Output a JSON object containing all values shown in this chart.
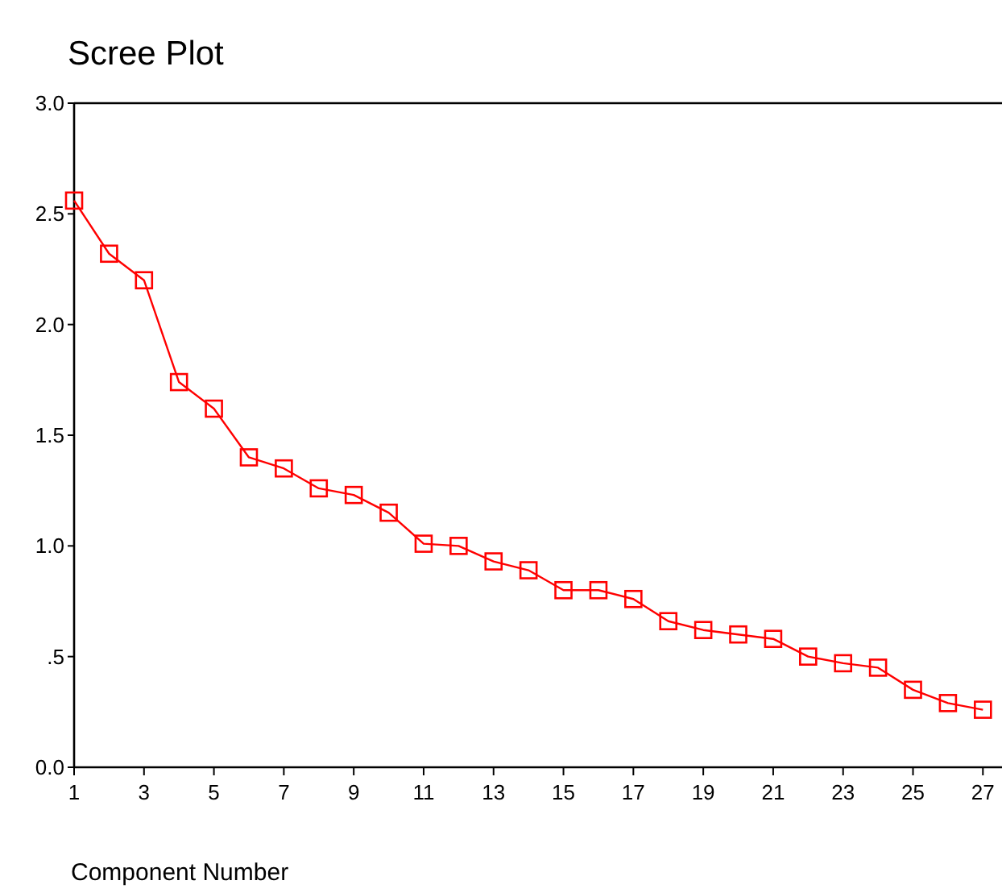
{
  "chart_data": {
    "type": "line",
    "title": "Scree Plot",
    "xlabel": "Component Number",
    "x": [
      1,
      2,
      3,
      4,
      5,
      6,
      7,
      8,
      9,
      10,
      11,
      12,
      13,
      14,
      15,
      16,
      17,
      18,
      19,
      20,
      21,
      22,
      23,
      24,
      25,
      26,
      27
    ],
    "series": [
      {
        "color": "#ff0000",
        "values": [
          2.56,
          2.32,
          2.2,
          1.74,
          1.62,
          1.4,
          1.35,
          1.26,
          1.23,
          1.15,
          1.01,
          1.0,
          0.93,
          0.89,
          0.8,
          0.8,
          0.76,
          0.66,
          0.62,
          0.6,
          0.58,
          0.5,
          0.47,
          0.45,
          0.35,
          0.29,
          0.26
        ]
      }
    ],
    "xlim": [
      1,
      27.5
    ],
    "xticks": [
      1,
      3,
      5,
      7,
      9,
      11,
      13,
      15,
      17,
      19,
      21,
      23,
      25,
      27
    ],
    "ylim": [
      0,
      3
    ],
    "yticks": [
      {
        "value": 0,
        "label": "0.0"
      },
      {
        "value": 0.5,
        "label": ".5"
      },
      {
        "value": 1,
        "label": "1.0"
      },
      {
        "value": 1.5,
        "label": "1.5"
      },
      {
        "value": 2,
        "label": "2.0"
      },
      {
        "value": 2.5,
        "label": "2.5"
      },
      {
        "value": 3,
        "label": "3.0"
      }
    ],
    "marker": "square",
    "line_style": "solid",
    "grid": false
  }
}
